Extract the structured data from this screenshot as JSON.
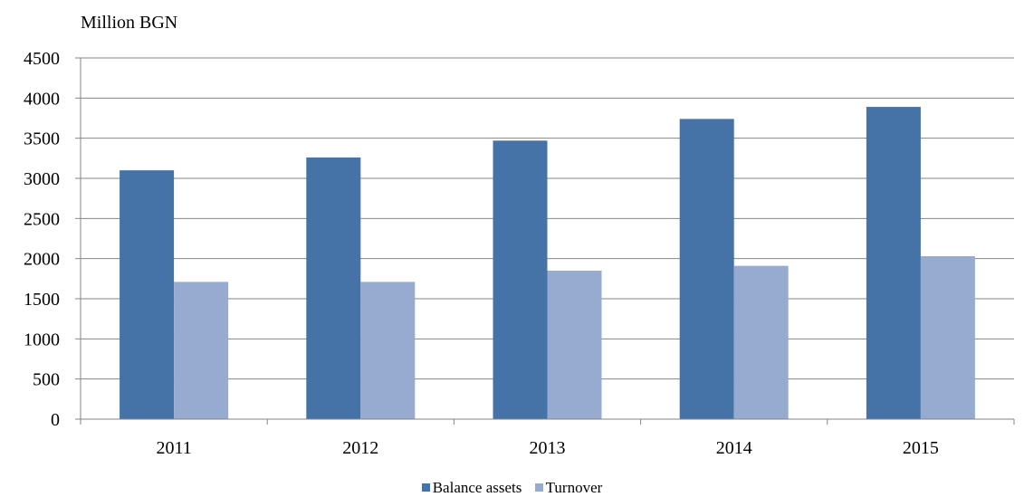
{
  "chart_data": {
    "type": "bar",
    "unit_label": "Million BGN",
    "categories": [
      "2011",
      "2012",
      "2013",
      "2014",
      "2015"
    ],
    "series": [
      {
        "name": "Balance assets",
        "color": "#4572a7",
        "values": [
          3100,
          3260,
          3470,
          3740,
          3890
        ]
      },
      {
        "name": "Turnover",
        "color": "#97abd0",
        "values": [
          1710,
          1710,
          1850,
          1910,
          2030
        ]
      }
    ],
    "ylim": [
      0,
      4500
    ],
    "yticks": [
      0,
      500,
      1000,
      1500,
      2000,
      2500,
      3000,
      3500,
      4000,
      4500
    ],
    "grid": true,
    "legend_position": "bottom"
  }
}
